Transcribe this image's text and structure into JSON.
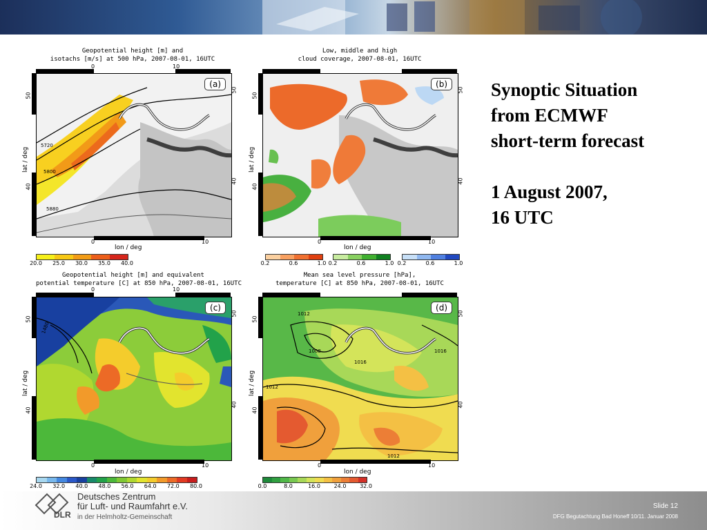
{
  "slide": {
    "title_lines": [
      "Synoptic Situation",
      "from ECMWF",
      "short-term forecast"
    ],
    "date_lines": [
      "1 August 2007,",
      "16 UTC"
    ]
  },
  "panels": [
    {
      "id": "a",
      "tag": "(a)",
      "title_lines": [
        "Geopotential height [m] and",
        "isotachs [m/s] at 500 hPa, 2007-08-01, 16UTC"
      ],
      "contour_labels": [
        "5720",
        "5800",
        "5880"
      ],
      "colorbar": {
        "colors": [
          "#f6f01a",
          "#f7c814",
          "#f29c16",
          "#ec5e1a",
          "#d6261c"
        ],
        "labels": [
          "20.0",
          "25.0",
          "30.0",
          "35.0",
          "40.0"
        ]
      }
    },
    {
      "id": "b",
      "tag": "(b)",
      "title_lines": [
        "Low, middle and high",
        "cloud coverage, 2007-08-01, 16UTC"
      ],
      "contour_labels": [],
      "colorbar_groups": [
        {
          "colors": [
            "#fbd0a0",
            "#f8a060",
            "#f07030",
            "#e04010"
          ],
          "labels": [
            "0.2",
            "0.6",
            "1.0"
          ]
        },
        {
          "colors": [
            "#c8eca0",
            "#88d060",
            "#40b030",
            "#108020"
          ],
          "labels": [
            "0.2",
            "0.6",
            "1.0"
          ]
        },
        {
          "colors": [
            "#c8e0f8",
            "#90b8f0",
            "#5080e0",
            "#2048c0"
          ],
          "labels": [
            "0.2",
            "0.6",
            "1.0"
          ]
        }
      ]
    },
    {
      "id": "c",
      "tag": "(c)",
      "title_lines": [
        "Geopotential height [m] and equivalent",
        "potential temperature [C] at 850 hPa, 2007-08-01, 16UTC"
      ],
      "contour_labels": [
        "1480"
      ],
      "colorbar": {
        "colors": [
          "#a8d8f0",
          "#78b8ec",
          "#4488e0",
          "#2a58c8",
          "#1840a0",
          "#188a6a",
          "#22a24a",
          "#4cb83a",
          "#80c834",
          "#b0d830",
          "#e2e42e",
          "#f4cc2c",
          "#f29a2a",
          "#ec6a26",
          "#e23a22",
          "#c81c1c"
        ],
        "labels": [
          "24.0",
          "32.0",
          "40.0",
          "48.0",
          "56.0",
          "64.0",
          "72.0",
          "80.0"
        ]
      }
    },
    {
      "id": "d",
      "tag": "(d)",
      "title_lines": [
        "Mean sea level pressure [hPa],",
        "temperature [C] at 850 hPa, 2007-08-01, 16UTC"
      ],
      "contour_labels": [
        "1012",
        "1008",
        "1016",
        "1012",
        "1012",
        "1016"
      ],
      "colorbar": {
        "colors": [
          "#1e8a3a",
          "#30a040",
          "#50b848",
          "#78c850",
          "#a8d858",
          "#d4e45a",
          "#f0dc50",
          "#f4c044",
          "#f0a03c",
          "#ec7e36",
          "#e45a30",
          "#d43028"
        ],
        "labels": [
          "0.0",
          "8.0",
          "16.0",
          "24.0",
          "32.0"
        ]
      }
    }
  ],
  "axes": {
    "x_label": "lon / deg",
    "y_label": "lat / deg",
    "x_ticks": [
      "0",
      "10"
    ],
    "y_ticks": [
      "50",
      "40"
    ]
  },
  "footer": {
    "org_lines": [
      "Deutsches Zentrum",
      "für Luft- und Raumfahrt e.V."
    ],
    "org_sub": "in der Helmholtz-Gemeinschaft",
    "logo_text": "DLR",
    "slide_number": "Slide 12",
    "footnote": "DFG Begutachtung Bad Honeff 10/11. Januar 2008"
  }
}
